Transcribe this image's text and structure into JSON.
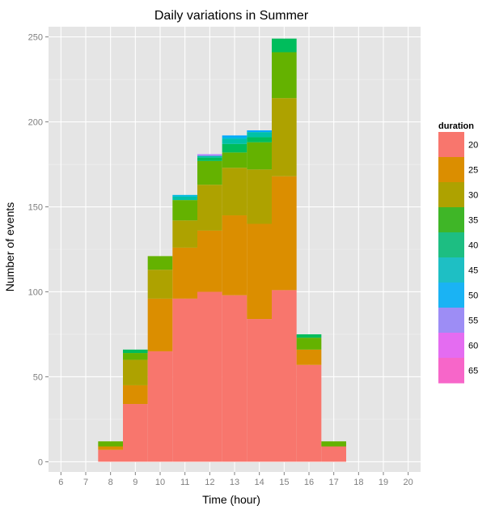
{
  "chart_data": {
    "type": "bar",
    "stacked": true,
    "title": "Daily variations in Summer",
    "xlabel": "Time (hour)",
    "ylabel": "Number of events",
    "x_ticks": [
      6,
      7,
      8,
      9,
      10,
      11,
      12,
      13,
      14,
      15,
      16,
      17,
      18,
      19,
      20
    ],
    "xlim": [
      5.5,
      20.5
    ],
    "y_ticks": [
      0,
      50,
      100,
      150,
      200,
      250
    ],
    "ylim": [
      -6,
      256
    ],
    "grid": true,
    "legend_position": "right",
    "legend_title": "duration",
    "categories": [
      8,
      9,
      10,
      11,
      12,
      13,
      14,
      15,
      16,
      17
    ],
    "series": [
      {
        "name": "20",
        "color": "#F8766D",
        "values": [
          7,
          34,
          65,
          96,
          100,
          98,
          84,
          101,
          57,
          9
        ]
      },
      {
        "name": "25",
        "color": "#DB8E00",
        "values": [
          2,
          11,
          31,
          30,
          36,
          47,
          56,
          67,
          9,
          0
        ]
      },
      {
        "name": "30",
        "color": "#AEA200",
        "values": [
          0,
          15,
          17,
          16,
          27,
          28,
          32,
          46,
          0,
          0
        ]
      },
      {
        "name": "35",
        "color": "#64B200",
        "values": [
          3,
          4,
          8,
          12,
          14,
          9,
          16,
          27,
          7,
          3
        ]
      },
      {
        "name": "40",
        "color": "#00BD5C",
        "values": [
          0,
          2,
          0,
          0,
          2,
          5,
          3,
          8,
          2,
          0
        ]
      },
      {
        "name": "45",
        "color": "#00C1A7",
        "values": [
          0,
          0,
          0,
          2,
          1,
          3,
          3,
          0,
          0,
          0
        ]
      },
      {
        "name": "50",
        "color": "#00BADE",
        "values": [
          0,
          0,
          0,
          1,
          0,
          1,
          0,
          0,
          0,
          0
        ]
      },
      {
        "name": "55",
        "color": "#00A6FF",
        "values": [
          0,
          0,
          0,
          0,
          0,
          1,
          1,
          0,
          0,
          0
        ]
      },
      {
        "name": "60",
        "color": "#B385FF",
        "values": [
          0,
          0,
          0,
          0,
          1,
          0,
          0,
          0,
          0,
          0
        ]
      },
      {
        "name": "65",
        "color": "#EF67EB",
        "values": [
          0,
          0,
          0,
          0,
          0,
          0,
          0,
          0,
          0,
          0
        ]
      }
    ],
    "legend_colors": [
      "#F8766D",
      "#DB8E00",
      "#AEA200",
      "#3FB627",
      "#1DBE82",
      "#1EBFC4",
      "#1AB3F4",
      "#9D8DF5",
      "#E46CF1",
      "#F766C9"
    ]
  }
}
